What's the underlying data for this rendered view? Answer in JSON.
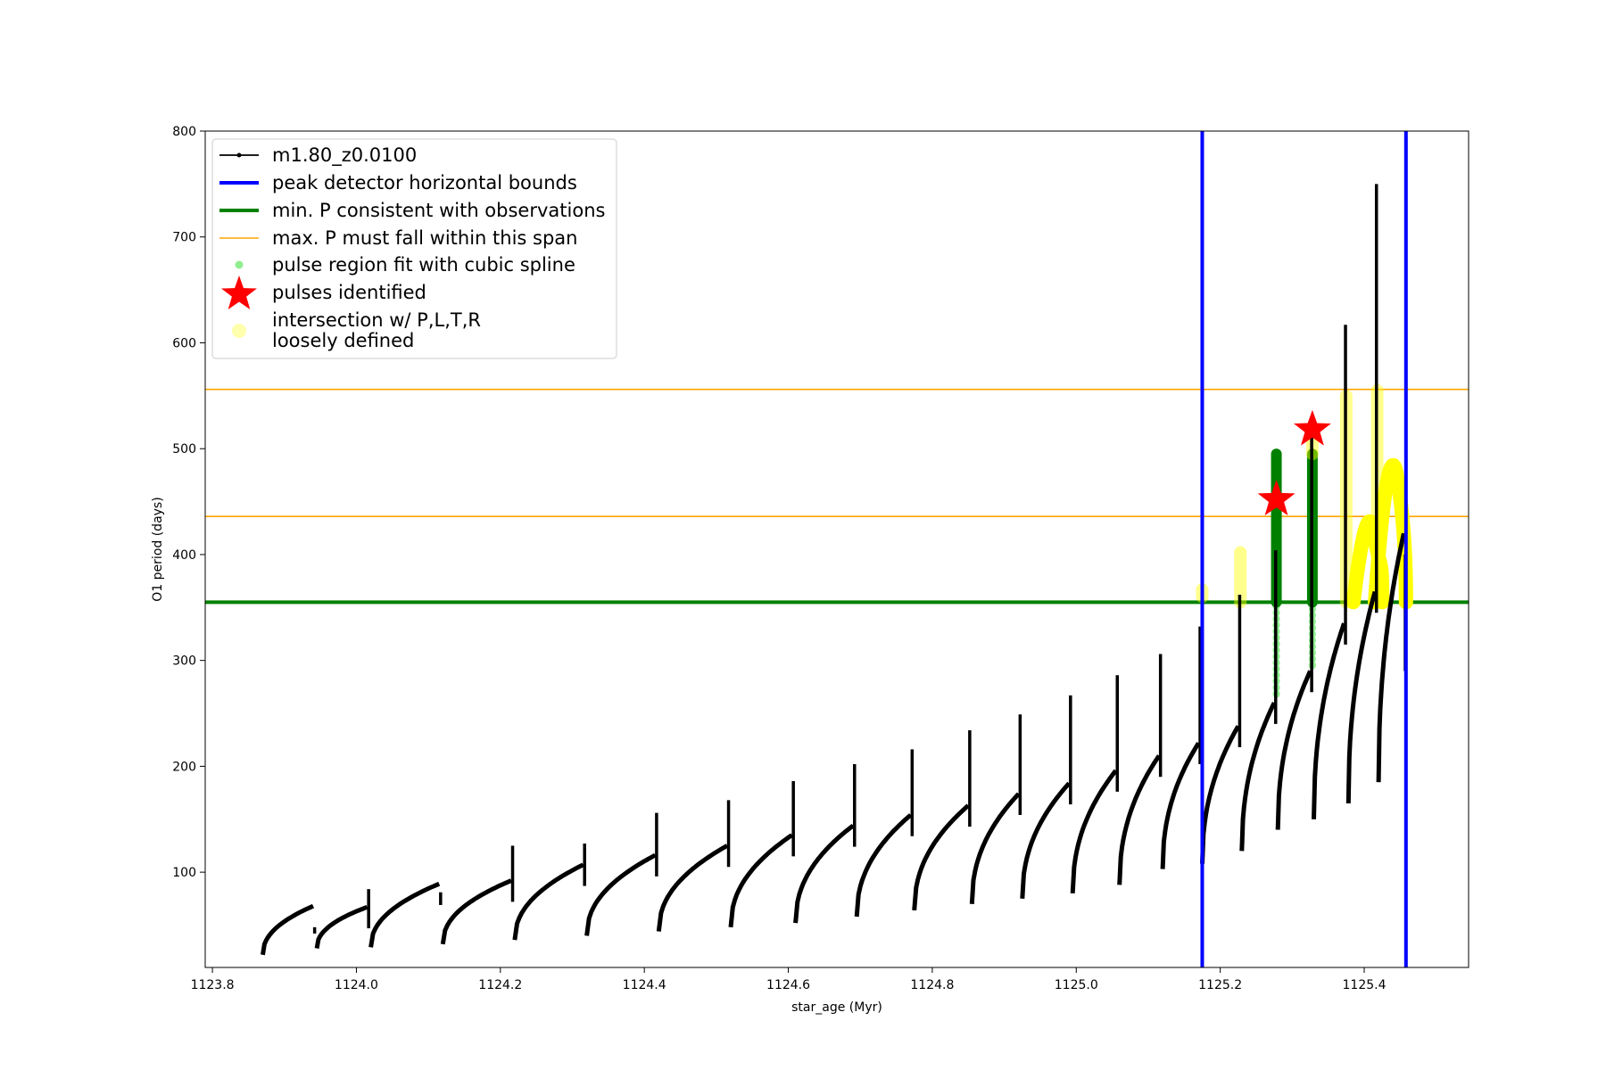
{
  "chart_data": {
    "type": "line",
    "title": "",
    "xlabel": "star_age (Myr)",
    "ylabel": "O1 period (days)",
    "xlim": [
      1123.79,
      1125.545
    ],
    "ylim": [
      10,
      800
    ],
    "xticks": [
      1123.8,
      1124.0,
      1124.2,
      1124.4,
      1124.6,
      1124.8,
      1125.0,
      1125.2,
      1125.4
    ],
    "xtick_labels": [
      "1123.8",
      "1124.0",
      "1124.2",
      "1124.4",
      "1124.6",
      "1124.8",
      "1125.0",
      "1125.2",
      "1125.4"
    ],
    "yticks": [
      100,
      200,
      300,
      400,
      500,
      600,
      700,
      800
    ],
    "ytick_labels": [
      "100",
      "200",
      "300",
      "400",
      "500",
      "600",
      "700",
      "800"
    ],
    "grid": false,
    "legend_position": "top-left",
    "colors": {
      "series": "#000000",
      "bounds": "#0000ff",
      "min_p": "#008000",
      "max_p": "#ffa500",
      "spline": "#90ee90",
      "pulse_star": "#ff0000",
      "loose": "#ffff00"
    },
    "pulses": [
      {
        "x0": 1123.87,
        "y0": 22,
        "x1": 1123.94,
        "y1": 68,
        "spike": 42
      },
      {
        "x0": 1123.945,
        "y0": 28,
        "x1": 1124.015,
        "y1": 67,
        "spike": 84
      },
      {
        "x0": 1124.02,
        "y0": 29,
        "x1": 1124.115,
        "y1": 89,
        "spike": 81
      },
      {
        "x0": 1124.12,
        "y0": 32,
        "x1": 1124.215,
        "y1": 92,
        "spike": 125
      },
      {
        "x0": 1124.22,
        "y0": 36,
        "x1": 1124.315,
        "y1": 107,
        "spike": 127
      },
      {
        "x0": 1124.32,
        "y0": 40,
        "x1": 1124.415,
        "y1": 116,
        "spike": 156
      },
      {
        "x0": 1124.42,
        "y0": 44,
        "x1": 1124.515,
        "y1": 125,
        "spike": 168
      },
      {
        "x0": 1124.52,
        "y0": 48,
        "x1": 1124.605,
        "y1": 135,
        "spike": 186
      },
      {
        "x0": 1124.61,
        "y0": 52,
        "x1": 1124.69,
        "y1": 144,
        "spike": 202
      },
      {
        "x0": 1124.695,
        "y0": 58,
        "x1": 1124.77,
        "y1": 154,
        "spike": 216
      },
      {
        "x0": 1124.775,
        "y0": 64,
        "x1": 1124.85,
        "y1": 163,
        "spike": 234
      },
      {
        "x0": 1124.855,
        "y0": 70,
        "x1": 1124.92,
        "y1": 174,
        "spike": 249
      },
      {
        "x0": 1124.925,
        "y0": 75,
        "x1": 1124.99,
        "y1": 184,
        "spike": 267
      },
      {
        "x0": 1124.995,
        "y0": 80,
        "x1": 1125.055,
        "y1": 196,
        "spike": 286
      },
      {
        "x0": 1125.06,
        "y0": 88,
        "x1": 1125.115,
        "y1": 210,
        "spike": 306
      },
      {
        "x0": 1125.12,
        "y0": 103,
        "x1": 1125.17,
        "y1": 222,
        "spike": 332
      },
      {
        "x0": 1125.175,
        "y0": 108,
        "x1": 1125.225,
        "y1": 238,
        "spike": 362
      },
      {
        "x0": 1125.23,
        "y0": 120,
        "x1": 1125.275,
        "y1": 260,
        "spike": 404
      },
      {
        "x0": 1125.28,
        "y0": 140,
        "x1": 1125.325,
        "y1": 290,
        "spike": 525
      },
      {
        "x0": 1125.33,
        "y0": 150,
        "x1": 1125.372,
        "y1": 335,
        "spike": 617
      },
      {
        "x0": 1125.378,
        "y0": 165,
        "x1": 1125.415,
        "y1": 365,
        "spike": 750
      },
      {
        "x0": 1125.42,
        "y0": 185,
        "x1": 1125.455,
        "y1": 420,
        "spike": 290
      }
    ],
    "vertical_bounds": [
      1125.175,
      1125.458
    ],
    "min_p": 355,
    "max_p_span": [
      436,
      556
    ],
    "spline_regions": [
      {
        "x": 1125.278,
        "ymin": 268,
        "ymax": 355
      },
      {
        "x": 1125.328,
        "ymin": 295,
        "ymax": 355
      }
    ],
    "dense_green_regions": [
      {
        "x": 1125.278,
        "ymin": 355,
        "ymax": 495
      },
      {
        "x": 1125.328,
        "ymin": 355,
        "ymax": 495
      }
    ],
    "pulses_identified": [
      {
        "x": 1125.278,
        "y": 452
      },
      {
        "x": 1125.328,
        "y": 518
      }
    ],
    "loose_points": [
      {
        "x": 1125.175,
        "ymin": 360,
        "ymax": 367
      },
      {
        "x": 1125.228,
        "ymin": 355,
        "ymax": 402
      },
      {
        "x": 1125.328,
        "ymin": 495,
        "ymax": 515
      },
      {
        "x": 1125.375,
        "ymin": 355,
        "ymax": 550
      },
      {
        "x": 1125.418,
        "ymin": 360,
        "ymax": 555
      }
    ],
    "loose_humps": [
      {
        "x0": 1125.385,
        "x1": 1125.425,
        "peak": 418
      },
      {
        "x0": 1125.415,
        "x1": 1125.458,
        "peak": 472
      }
    ],
    "legend": [
      {
        "label": "m1.80_z0.0100",
        "style": "line-marker",
        "color": "#000000"
      },
      {
        "label": "peak detector horizontal bounds",
        "style": "thick-line",
        "color": "#0000ff"
      },
      {
        "label": "min. P consistent with observations",
        "style": "thick-line",
        "color": "#008000"
      },
      {
        "label": "max. P must fall within this span",
        "style": "thin-line",
        "color": "#ffa500"
      },
      {
        "label": "pulse region fit with cubic spline",
        "style": "dot",
        "color": "#90ee90"
      },
      {
        "label": "pulses identified",
        "style": "star",
        "color": "#ff0000"
      },
      {
        "label": "intersection w/ P,L,T,R",
        "label2": "loosely defined",
        "style": "big-dot",
        "color": "#ffff99"
      }
    ]
  }
}
